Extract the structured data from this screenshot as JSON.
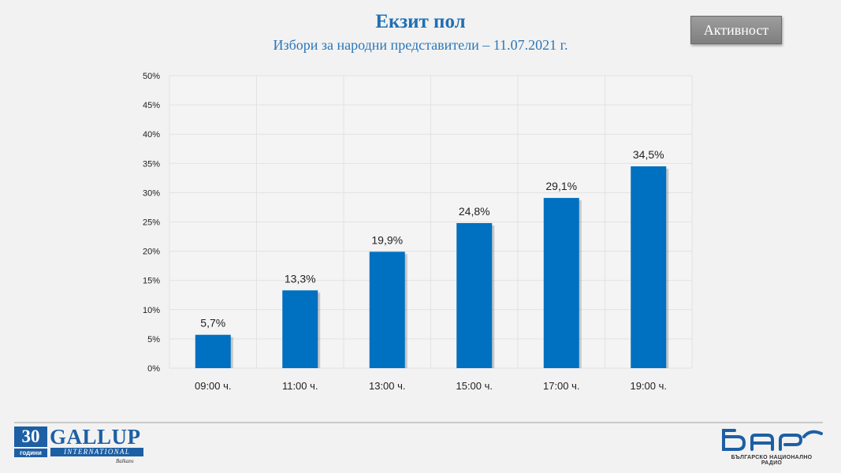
{
  "header": {
    "title": "Екзит пол",
    "subtitle": "Избори за народни представители – 11.07.2021  г.",
    "active_button_label": "Активност"
  },
  "chart_data": {
    "type": "bar",
    "categories": [
      "09:00 ч.",
      "11:00 ч.",
      "13:00 ч.",
      "15:00 ч.",
      "17:00 ч.",
      "19:00 ч."
    ],
    "values": [
      5.7,
      13.3,
      19.9,
      24.8,
      29.1,
      34.5
    ],
    "data_labels": [
      "5,7%",
      "13,3%",
      "19,9%",
      "24,8%",
      "29,1%",
      "34,5%"
    ],
    "y_ticks": [
      "0%",
      "5%",
      "10%",
      "15%",
      "20%",
      "25%",
      "30%",
      "35%",
      "40%",
      "45%",
      "50%"
    ],
    "ylim": [
      0,
      50
    ],
    "grid": true,
    "bar_color": "#0070c0"
  },
  "footer": {
    "gallup": {
      "years_number": "30",
      "years_word": "години",
      "name": "GALLUP",
      "international": "INTERNATIONAL",
      "region": "Balkans",
      "brand_color": "#1d5fa4"
    },
    "bnr": {
      "subtitle": "БЪЛГАРСКО НАЦИОНАЛНО РАДИО",
      "logo_color": "#1d5fa4"
    }
  }
}
